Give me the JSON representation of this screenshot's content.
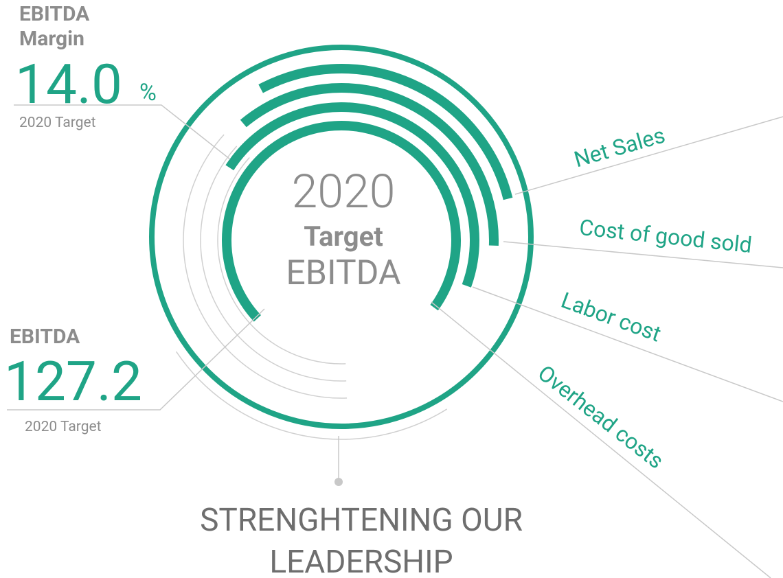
{
  "center": {
    "year": "2020",
    "line1": "Target",
    "line2": "EBITDA"
  },
  "margin": {
    "title_line1": "EBITDA",
    "title_line2": "Margin",
    "value": "14.0",
    "unit": "%",
    "caption": "2020 Target"
  },
  "ebitda": {
    "title": "EBITDA",
    "value": "127.2",
    "caption": "2020 Target"
  },
  "labels": [
    "Net Sales",
    "Cost of good sold",
    "Labor cost",
    "Overhead costs"
  ],
  "title": {
    "line1": "STRENGHTENING OUR",
    "line2": "LEADERSHIP"
  }
}
